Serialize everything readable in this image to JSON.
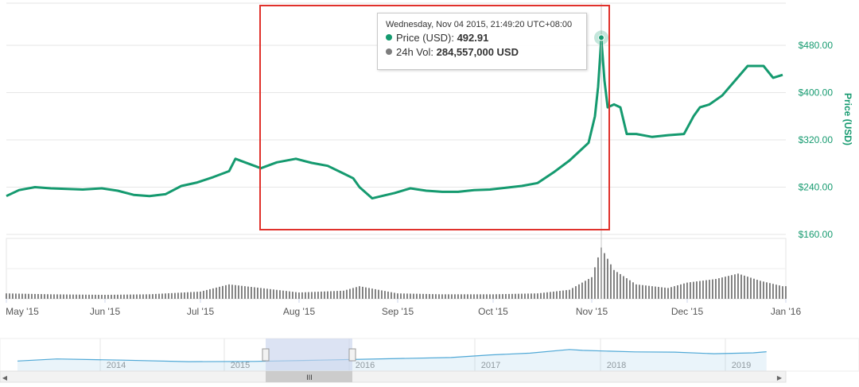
{
  "colors": {
    "price": "#159a6f",
    "volume": "#7d7d7d",
    "navigator": "#4fa8d6",
    "highlight_box": "#e0312b",
    "navigator_mask": "#c9d4ec"
  },
  "tooltip": {
    "date": "Wednesday, Nov 04 2015, 21:49:20 UTC+08:00",
    "price_label": "Price (USD):",
    "price_value": "492.91",
    "vol_label": "24h Vol:",
    "vol_value": "284,557,000 USD"
  },
  "scrollbar": {
    "thumb_label": "III",
    "left_arrow": "◀",
    "right_arrow": "▶"
  },
  "chart_data": {
    "type": "line",
    "ylabel": "Price (USD)",
    "ylim": [
      160,
      480
    ],
    "yticks": [
      160,
      240,
      320,
      400,
      480
    ],
    "ytick_labels": [
      "$160.00",
      "$240.00",
      "$320.00",
      "$400.00",
      "$480.00"
    ],
    "x_tick_labels": [
      "May '15",
      "Jun '15",
      "Jul '15",
      "Aug '15",
      "Sep '15",
      "Oct '15",
      "Nov '15",
      "Dec '15",
      "Jan '16"
    ],
    "x_tick_dates": [
      "2015-05-01",
      "2015-06-01",
      "2015-07-01",
      "2015-08-01",
      "2015-09-01",
      "2015-10-01",
      "2015-11-01",
      "2015-12-01",
      "2016-01-01"
    ],
    "xlim": [
      "2015-05-01",
      "2016-01-01"
    ],
    "series": [
      {
        "name": "Price (USD)",
        "x": [
          "2015-05-01",
          "2015-05-05",
          "2015-05-10",
          "2015-05-15",
          "2015-05-20",
          "2015-05-25",
          "2015-05-31",
          "2015-06-05",
          "2015-06-10",
          "2015-06-15",
          "2015-06-20",
          "2015-06-25",
          "2015-06-30",
          "2015-07-05",
          "2015-07-10",
          "2015-07-12",
          "2015-07-15",
          "2015-07-20",
          "2015-07-25",
          "2015-07-31",
          "2015-08-05",
          "2015-08-10",
          "2015-08-15",
          "2015-08-18",
          "2015-08-20",
          "2015-08-24",
          "2015-08-27",
          "2015-08-31",
          "2015-09-05",
          "2015-09-10",
          "2015-09-15",
          "2015-09-20",
          "2015-09-25",
          "2015-09-30",
          "2015-10-05",
          "2015-10-10",
          "2015-10-15",
          "2015-10-20",
          "2015-10-25",
          "2015-10-28",
          "2015-10-31",
          "2015-11-02",
          "2015-11-03",
          "2015-11-04",
          "2015-11-05",
          "2015-11-06",
          "2015-11-08",
          "2015-11-10",
          "2015-11-12",
          "2015-11-15",
          "2015-11-20",
          "2015-11-25",
          "2015-11-30",
          "2015-12-03",
          "2015-12-05",
          "2015-12-08",
          "2015-12-12",
          "2015-12-16",
          "2015-12-20",
          "2015-12-25",
          "2015-12-28",
          "2015-12-31"
        ],
        "y": [
          225,
          235,
          240,
          238,
          237,
          236,
          238,
          234,
          227,
          225,
          228,
          242,
          248,
          257,
          267,
          288,
          282,
          272,
          282,
          288,
          281,
          276,
          263,
          255,
          240,
          221,
          225,
          230,
          238,
          234,
          232,
          232,
          235,
          236,
          239,
          242,
          247,
          265,
          285,
          300,
          315,
          360,
          410,
          492,
          420,
          375,
          380,
          375,
          330,
          330,
          325,
          328,
          330,
          360,
          375,
          380,
          395,
          420,
          445,
          445,
          425,
          430
        ],
        "highlight": {
          "x": "2015-11-04",
          "y": 492.91
        }
      },
      {
        "name": "24h Vol",
        "unit": "USD",
        "x": [
          "2015-05-01",
          "2015-05-15",
          "2015-06-01",
          "2015-06-15",
          "2015-07-01",
          "2015-07-10",
          "2015-07-20",
          "2015-08-01",
          "2015-08-15",
          "2015-08-20",
          "2015-09-01",
          "2015-09-15",
          "2015-10-01",
          "2015-10-15",
          "2015-10-25",
          "2015-11-01",
          "2015-11-04",
          "2015-11-08",
          "2015-11-15",
          "2015-11-25",
          "2015-12-01",
          "2015-12-10",
          "2015-12-17",
          "2015-12-24",
          "2015-12-31"
        ],
        "y": [
          30000000,
          25000000,
          22000000,
          25000000,
          40000000,
          80000000,
          60000000,
          35000000,
          45000000,
          70000000,
          30000000,
          25000000,
          25000000,
          30000000,
          50000000,
          120000000,
          284557000,
          160000000,
          80000000,
          60000000,
          90000000,
          110000000,
          140000000,
          100000000,
          70000000
        ]
      }
    ],
    "navigator": {
      "year_labels": [
        "2014",
        "2015",
        "2016",
        "2017",
        "2018",
        "2019"
      ],
      "x_years": [
        2013.7,
        2014.0,
        2014.5,
        2015.0,
        2015.5,
        2016.0,
        2016.5,
        2017.0,
        2017.3,
        2017.6,
        2017.9,
        2018.0,
        2018.2,
        2018.4,
        2018.7,
        2019.0,
        2019.3,
        2019.4
      ],
      "y": [
        300,
        600,
        400,
        240,
        260,
        400,
        650,
        1000,
        2500,
        4500,
        16000,
        12000,
        9000,
        7000,
        6500,
        3700,
        5000,
        7500
      ]
    }
  }
}
